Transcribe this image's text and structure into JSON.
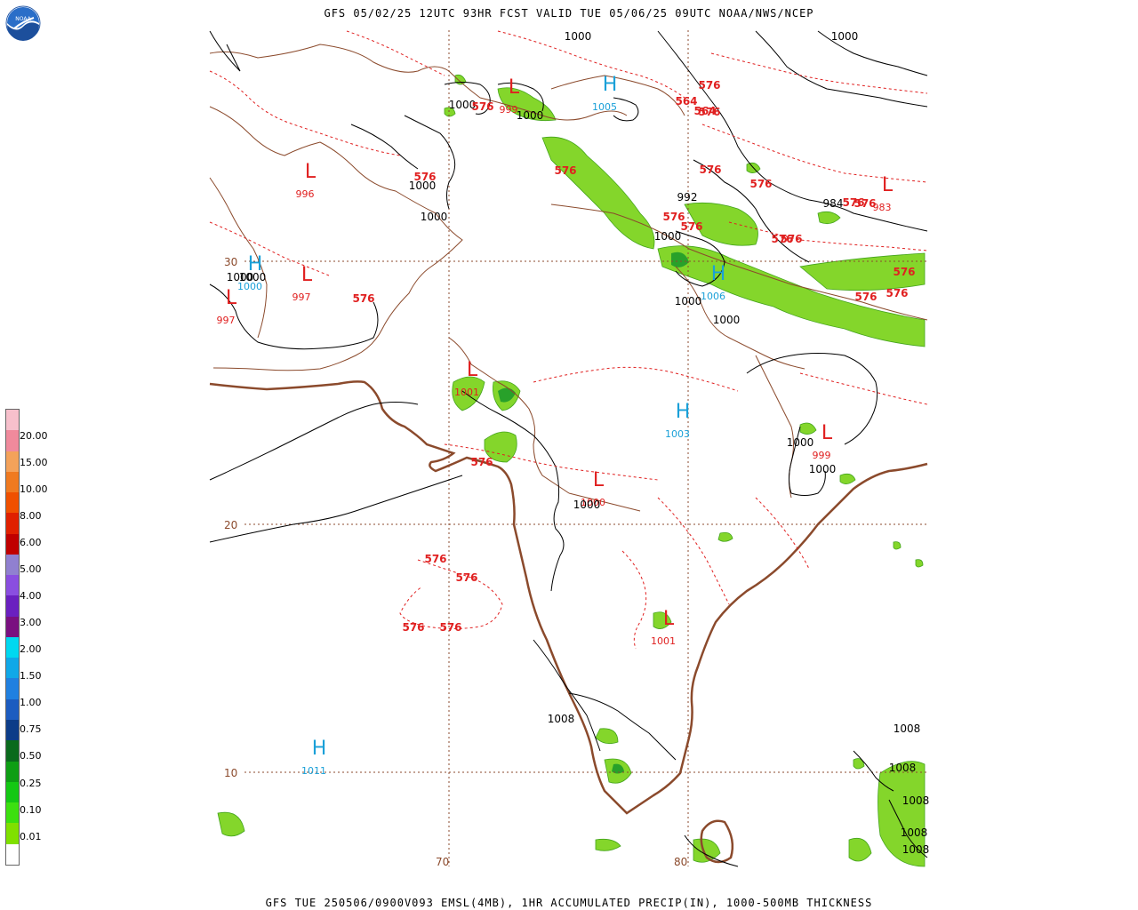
{
  "header": {
    "title": "GFS 05/02/25 12UTC 93HR FCST VALID TUE 05/06/25 09UTC NOAA/NWS/NCEP"
  },
  "footer": {
    "caption": "GFS TUE 250506/0900V093 EMSL(4MB), 1HR ACCUMULATED PRECIP(IN), 1000-500MB THICKNESS"
  },
  "logo": {
    "icon": "noaa-logo-icon",
    "text": "NOAA"
  },
  "legend": {
    "labels": [
      "20.00",
      "15.00",
      "10.00",
      "8.00",
      "6.00",
      "5.00",
      "4.00",
      "3.00",
      "2.00",
      "1.50",
      "1.00",
      "0.75",
      "0.50",
      "0.25",
      "0.10",
      "0.01"
    ],
    "colors": [
      "#f7c0cc",
      "#f08a9c",
      "#f4a25a",
      "#f07a20",
      "#f05000",
      "#e02000",
      "#c00000",
      "#9080d0",
      "#8a4ee0",
      "#6a20c0",
      "#7a1080",
      "#00d8f0",
      "#10a8e8",
      "#2080e0",
      "#1c5cc0",
      "#0c3c88",
      "#0a6a1c",
      "#0e9e14",
      "#14c814",
      "#3ce010",
      "#80e000",
      "#ffffff"
    ]
  },
  "grid_labels": {
    "lat_30": "30",
    "lat_20": "20",
    "lat_10": "10",
    "lon_70": "70",
    "lon_80": "80"
  },
  "pressure_centers": [
    {
      "type": "L",
      "value": "999"
    },
    {
      "type": "H",
      "value": "1005"
    },
    {
      "type": "L",
      "value": "996"
    },
    {
      "type": "L",
      "value": "983"
    },
    {
      "type": "H",
      "value": "1000"
    },
    {
      "type": "L",
      "value": "997"
    },
    {
      "type": "L",
      "value": "997"
    },
    {
      "type": "H",
      "value": "1006"
    },
    {
      "type": "L",
      "value": "1001"
    },
    {
      "type": "H",
      "value": "1003"
    },
    {
      "type": "L",
      "value": "999"
    },
    {
      "type": "L",
      "value": "1000"
    },
    {
      "type": "L",
      "value": "1001"
    },
    {
      "type": "H",
      "value": "1011"
    }
  ],
  "isobar_labels": [
    "1000",
    "1000",
    "1000",
    "1000",
    "1000",
    "1000",
    "1000",
    "1000",
    "1000",
    "992",
    "984",
    "1000",
    "1000",
    "1000",
    "1000",
    "1000",
    "1008",
    "1008",
    "1008",
    "1008",
    "1008",
    "1008"
  ],
  "thickness_labels": [
    "576",
    "576",
    "564",
    "564",
    "576",
    "576",
    "576",
    "576",
    "576",
    "576",
    "576",
    "576",
    "576",
    "576",
    "576",
    "576",
    "576",
    "576",
    "576",
    "576",
    "576",
    "576",
    "576",
    "576"
  ]
}
